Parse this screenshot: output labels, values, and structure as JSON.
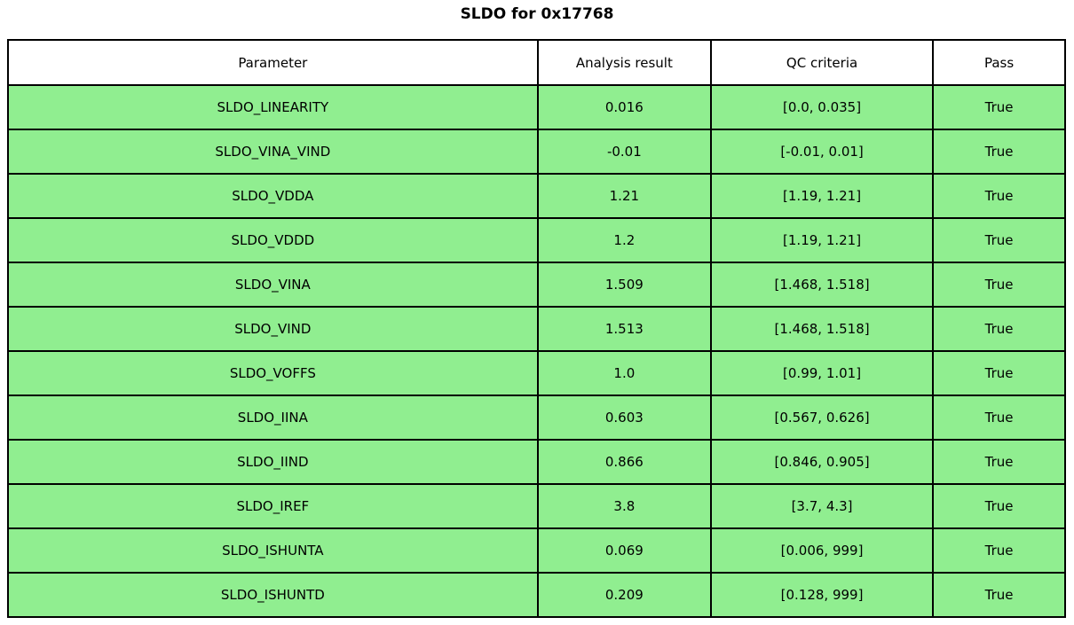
{
  "title": "SLDO for 0x17768",
  "table": {
    "columns": [
      "Parameter",
      "Analysis result",
      "QC criteria",
      "Pass"
    ],
    "rows": [
      [
        "SLDO_LINEARITY",
        "0.016",
        "[0.0, 0.035]",
        "True"
      ],
      [
        "SLDO_VINA_VIND",
        "-0.01",
        "[-0.01, 0.01]",
        "True"
      ],
      [
        "SLDO_VDDA",
        "1.21",
        "[1.19, 1.21]",
        "True"
      ],
      [
        "SLDO_VDDD",
        "1.2",
        "[1.19, 1.21]",
        "True"
      ],
      [
        "SLDO_VINA",
        "1.509",
        "[1.468, 1.518]",
        "True"
      ],
      [
        "SLDO_VIND",
        "1.513",
        "[1.468, 1.518]",
        "True"
      ],
      [
        "SLDO_VOFFS",
        "1.0",
        "[0.99, 1.01]",
        "True"
      ],
      [
        "SLDO_IINA",
        "0.603",
        "[0.567, 0.626]",
        "True"
      ],
      [
        "SLDO_IIND",
        "0.866",
        "[0.846, 0.905]",
        "True"
      ],
      [
        "SLDO_IREF",
        "3.8",
        "[3.7, 4.3]",
        "True"
      ],
      [
        "SLDO_ISHUNTA",
        "0.069",
        "[0.006, 999]",
        "True"
      ],
      [
        "SLDO_ISHUNTD",
        "0.209",
        "[0.128, 999]",
        "True"
      ]
    ],
    "colors": {
      "row_background": "#90EE90",
      "header_background": "#FFFFFF",
      "border": "#000000",
      "text": "#000000"
    }
  },
  "chart_data": {
    "type": "table",
    "title": "SLDO for 0x17768",
    "columns": [
      "Parameter",
      "Analysis result",
      "QC criteria",
      "Pass"
    ],
    "rows": [
      {
        "parameter": "SLDO_LINEARITY",
        "analysis_result": 0.016,
        "qc_criteria": [
          0.0,
          0.035
        ],
        "pass": true
      },
      {
        "parameter": "SLDO_VINA_VIND",
        "analysis_result": -0.01,
        "qc_criteria": [
          -0.01,
          0.01
        ],
        "pass": true
      },
      {
        "parameter": "SLDO_VDDA",
        "analysis_result": 1.21,
        "qc_criteria": [
          1.19,
          1.21
        ],
        "pass": true
      },
      {
        "parameter": "SLDO_VDDD",
        "analysis_result": 1.2,
        "qc_criteria": [
          1.19,
          1.21
        ],
        "pass": true
      },
      {
        "parameter": "SLDO_VINA",
        "analysis_result": 1.509,
        "qc_criteria": [
          1.468,
          1.518
        ],
        "pass": true
      },
      {
        "parameter": "SLDO_VIND",
        "analysis_result": 1.513,
        "qc_criteria": [
          1.468,
          1.518
        ],
        "pass": true
      },
      {
        "parameter": "SLDO_VOFFS",
        "analysis_result": 1.0,
        "qc_criteria": [
          0.99,
          1.01
        ],
        "pass": true
      },
      {
        "parameter": "SLDO_IINA",
        "analysis_result": 0.603,
        "qc_criteria": [
          0.567,
          0.626
        ],
        "pass": true
      },
      {
        "parameter": "SLDO_IIND",
        "analysis_result": 0.866,
        "qc_criteria": [
          0.846,
          0.905
        ],
        "pass": true
      },
      {
        "parameter": "SLDO_IREF",
        "analysis_result": 3.8,
        "qc_criteria": [
          3.7,
          4.3
        ],
        "pass": true
      },
      {
        "parameter": "SLDO_ISHUNTA",
        "analysis_result": 0.069,
        "qc_criteria": [
          0.006,
          999
        ],
        "pass": true
      },
      {
        "parameter": "SLDO_ISHUNTD",
        "analysis_result": 0.209,
        "qc_criteria": [
          0.128,
          999
        ],
        "pass": true
      }
    ],
    "layout_hints": {
      "header_background": "#FFFFFF",
      "row_background": "#90EE90",
      "grid": true,
      "cell_text_align": "center"
    }
  }
}
